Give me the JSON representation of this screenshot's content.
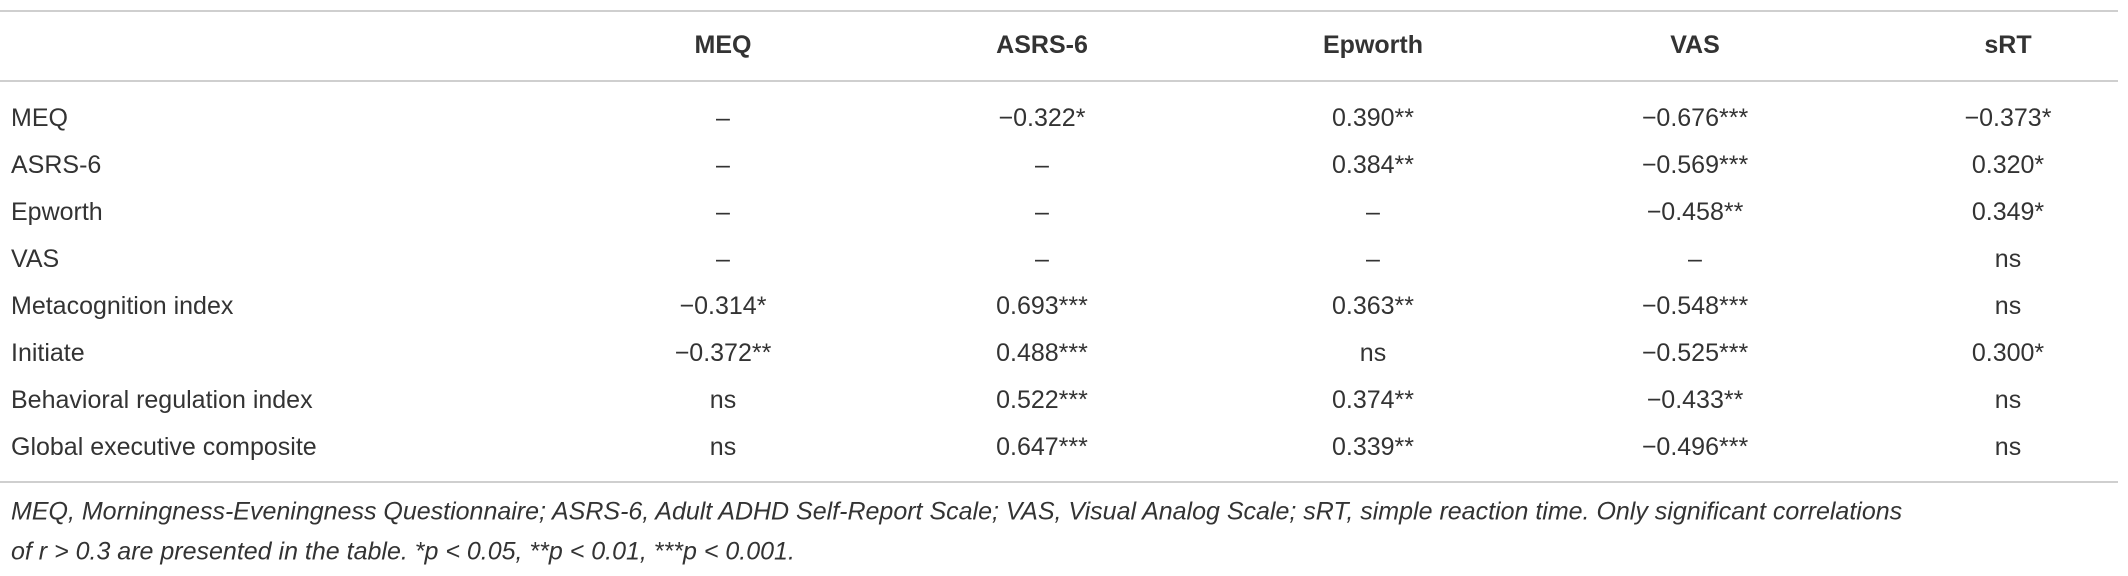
{
  "table": {
    "header": [
      "",
      "MEQ",
      "ASRS-6",
      "Epworth",
      "VAS",
      "sRT"
    ],
    "rows": [
      [
        "MEQ",
        "–",
        "−0.322*",
        "0.390**",
        "−0.676***",
        "−0.373*"
      ],
      [
        "ASRS-6",
        "–",
        "–",
        "0.384**",
        "−0.569***",
        "0.320*"
      ],
      [
        "Epworth",
        "–",
        "–",
        "–",
        "−0.458**",
        "0.349*"
      ],
      [
        "VAS",
        "–",
        "–",
        "–",
        "–",
        "ns"
      ],
      [
        "Metacognition index",
        "−0.314*",
        "0.693***",
        "0.363**",
        "−0.548***",
        "ns"
      ],
      [
        "Initiate",
        "−0.372**",
        "0.488***",
        "ns",
        "−0.525***",
        "0.300*"
      ],
      [
        "Behavioral regulation index",
        "ns",
        "0.522***",
        "0.374**",
        "−0.433**",
        "ns"
      ],
      [
        "Global executive composite",
        "ns",
        "0.647***",
        "0.339**",
        "−0.496***",
        "ns"
      ]
    ],
    "footnote": [
      "MEQ, Morningness-Eveningness Questionnaire; ASRS-6, Adult ADHD Self-Report Scale; VAS, Visual Analog Scale; sRT, simple reaction time. Only significant correlations",
      "of r > 0.3 are presented in the table. *p < 0.05, **p < 0.01, ***p < 0.001."
    ]
  }
}
